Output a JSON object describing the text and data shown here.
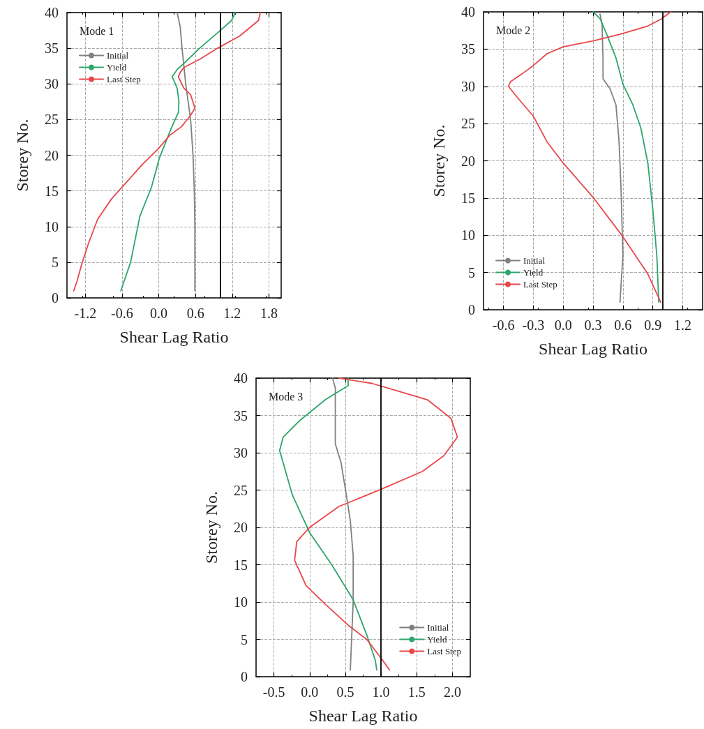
{
  "chart_data": [
    {
      "type": "line",
      "xlabel": "Shear Lag Ratio",
      "ylabel": "Storey No.",
      "annotations": [
        "Mode 1"
      ],
      "xlim": [
        -1.5,
        2.0
      ],
      "xticks": [
        -1.2,
        -0.6,
        {
          "value": 0,
          "label": "0.0"
        },
        0.6,
        1.2,
        1.8
      ],
      "ylim": [
        0,
        40
      ],
      "yticks": [
        0,
        5,
        10,
        15,
        20,
        25,
        30,
        35,
        40
      ],
      "grid": true,
      "legend": "top left",
      "line_style": "solid",
      "ref_lines": [
        {
          "axis": "x",
          "value": 1.0,
          "label": null,
          "color": "#000000"
        }
      ],
      "series": [
        {
          "name": "Initial",
          "color": "#808080",
          "x": [
            0.59,
            0.59,
            0.59,
            0.58,
            0.56,
            0.52,
            0.44,
            0.38,
            0.35,
            0.3
          ],
          "values": [
            1,
            5,
            10,
            15,
            20,
            25,
            30,
            35,
            38,
            40
          ]
        },
        {
          "name": "Yield",
          "color": "#2ca66a",
          "x": [
            -0.62,
            -0.46,
            -0.31,
            -0.27,
            -0.12,
            0.01,
            0.2,
            0.32,
            0.33,
            0.3,
            0.22,
            0.3,
            0.45,
            0.68,
            0.98,
            1.19,
            1.25
          ],
          "values": [
            1,
            5,
            11.4,
            12.3,
            15.5,
            19.6,
            23.7,
            26,
            27.5,
            29.4,
            31,
            32,
            33.2,
            35.1,
            37.3,
            38.9,
            40
          ]
        },
        {
          "name": "Last Step",
          "color": "#e8474a",
          "x": [
            -1.39,
            -1.34,
            -1.26,
            -1.15,
            -1.0,
            -0.77,
            -0.54,
            -0.27,
            -0.01,
            0.18,
            0.37,
            0.52,
            0.59,
            0.52,
            0.41,
            0.32,
            0.35,
            0.41,
            0.68,
            0.98,
            1.32,
            1.63,
            1.66
          ],
          "values": [
            1,
            2.2,
            4.7,
            7.6,
            11,
            13.9,
            16.1,
            18.7,
            20.9,
            22.8,
            24,
            25.6,
            26.6,
            28.5,
            29.4,
            31,
            31.6,
            32.3,
            33.5,
            35.1,
            36.7,
            38.9,
            40
          ]
        }
      ]
    },
    {
      "type": "line",
      "xlabel": "Shear Lag Ratio",
      "ylabel": "Storey No.",
      "annotations": [
        "Mode 2"
      ],
      "xlim": [
        -0.8,
        1.4
      ],
      "xticks": [
        -0.6,
        -0.3,
        {
          "value": 0,
          "label": "0.0"
        },
        0.3,
        0.6,
        0.9,
        1.2
      ],
      "ylim": [
        0,
        40
      ],
      "yticks": [
        0,
        5,
        10,
        15,
        20,
        25,
        30,
        35,
        40
      ],
      "grid": true,
      "legend": "bottom left",
      "line_style": "solid",
      "ref_lines": [
        {
          "axis": "x",
          "value": 1.0,
          "label": null,
          "color": "#000000"
        }
      ],
      "series": [
        {
          "name": "Initial",
          "color": "#808080",
          "x": [
            0.57,
            0.6,
            0.58,
            0.56,
            0.53,
            0.47,
            0.4,
            0.4,
            0.39,
            0.37
          ],
          "values": [
            1,
            7.3,
            16.6,
            22.8,
            27.5,
            29.7,
            31,
            33.8,
            38.4,
            39.7
          ]
        },
        {
          "name": "Yield",
          "color": "#2ca66a",
          "x": [
            0.96,
            0.94,
            0.9,
            0.85,
            0.78,
            0.7,
            0.6,
            0.53,
            0.44,
            0.37,
            0.3
          ],
          "values": [
            1,
            7.3,
            13.5,
            19.7,
            24.4,
            27.5,
            30.3,
            33.8,
            36.9,
            39.1,
            40
          ]
        },
        {
          "name": "Last Step",
          "color": "#e8474a",
          "x": [
            0.98,
            0.85,
            0.6,
            0.3,
            0.0,
            -0.16,
            -0.3,
            -0.46,
            -0.55,
            -0.53,
            -0.41,
            -0.3,
            -0.16,
            0.0,
            0.3,
            0.57,
            0.85,
            0.98,
            1.08
          ],
          "values": [
            1,
            4.8,
            9.8,
            15.1,
            19.7,
            22.5,
            26,
            28.5,
            30,
            30.6,
            31.7,
            32.8,
            34.4,
            35.3,
            36.1,
            37,
            38.1,
            39,
            40
          ]
        }
      ]
    },
    {
      "type": "line",
      "xlabel": "Shear Lag Ratio",
      "ylabel": "Storey No.",
      "annotations": [
        "Mode 3"
      ],
      "xlim": [
        -0.75,
        2.25
      ],
      "xticks": [
        -0.5,
        {
          "value": 0,
          "label": "0.0"
        },
        0.5,
        {
          "value": 1,
          "label": "1.0"
        },
        1.5,
        {
          "value": 2,
          "label": "2.0"
        }
      ],
      "ylim": [
        0,
        40
      ],
      "yticks": [
        0,
        5,
        10,
        15,
        20,
        25,
        30,
        35,
        40
      ],
      "grid": true,
      "legend": "bottom right",
      "line_style": "solid",
      "ref_lines": [
        {
          "axis": "x",
          "value": 1.0,
          "label": null,
          "color": "#000000"
        }
      ],
      "series": [
        {
          "name": "Initial",
          "color": "#808080",
          "x": [
            0.57,
            0.61,
            0.61,
            0.57,
            0.52,
            0.44,
            0.36,
            0.36,
            0.36,
            0.32
          ],
          "values": [
            0.9,
            10,
            16.2,
            20.9,
            24,
            28.7,
            31.2,
            34.9,
            38.7,
            40
          ]
        },
        {
          "name": "Yield",
          "color": "#2ca66a",
          "x": [
            0.94,
            0.92,
            0.8,
            0.61,
            0.31,
            0.0,
            -0.24,
            -0.42,
            -0.37,
            -0.14,
            0.22,
            0.54,
            0.54
          ],
          "values": [
            0.9,
            2.2,
            5.6,
            10.3,
            15,
            19.3,
            24.3,
            30.3,
            32.1,
            34.3,
            37.1,
            39,
            40
          ]
        },
        {
          "name": "Last Step",
          "color": "#e8474a",
          "x": [
            1.12,
            1.0,
            0.8,
            0.54,
            0.22,
            -0.05,
            -0.21,
            -0.18,
            0.0,
            0.41,
            1.0,
            1.58,
            1.88,
            2.07,
            1.98,
            1.65,
            1.19,
            0.87,
            0.41
          ],
          "values": [
            0.9,
            2.5,
            5,
            6.9,
            9.7,
            12.2,
            15.6,
            18.1,
            20,
            22.8,
            25.1,
            27.5,
            29.6,
            32.1,
            34.6,
            37.1,
            38.4,
            39.3,
            40
          ]
        }
      ]
    }
  ]
}
